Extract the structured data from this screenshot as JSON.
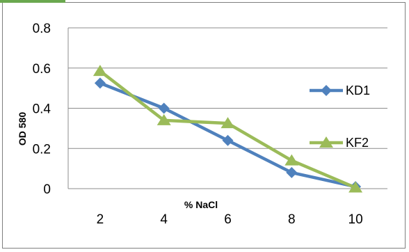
{
  "chart_data": {
    "type": "line",
    "title": "",
    "xlabel": "% NaCl",
    "ylabel": "OD 580",
    "categories": [
      "2",
      "4",
      "6",
      "8",
      "10"
    ],
    "ylim": [
      0,
      0.8
    ],
    "yticks": [
      "0",
      "0.2",
      "0.4",
      "0.6",
      "0.8"
    ],
    "grid": true,
    "legend": "right",
    "series": [
      {
        "name": "KD1",
        "color": "#4f81bd",
        "marker": "diamond",
        "values": [
          0.525,
          0.4,
          0.24,
          0.08,
          0.01
        ]
      },
      {
        "name": "KF2",
        "color": "#9bbb59",
        "marker": "triangle",
        "values": [
          0.585,
          0.34,
          0.325,
          0.14,
          0.005
        ]
      }
    ]
  }
}
